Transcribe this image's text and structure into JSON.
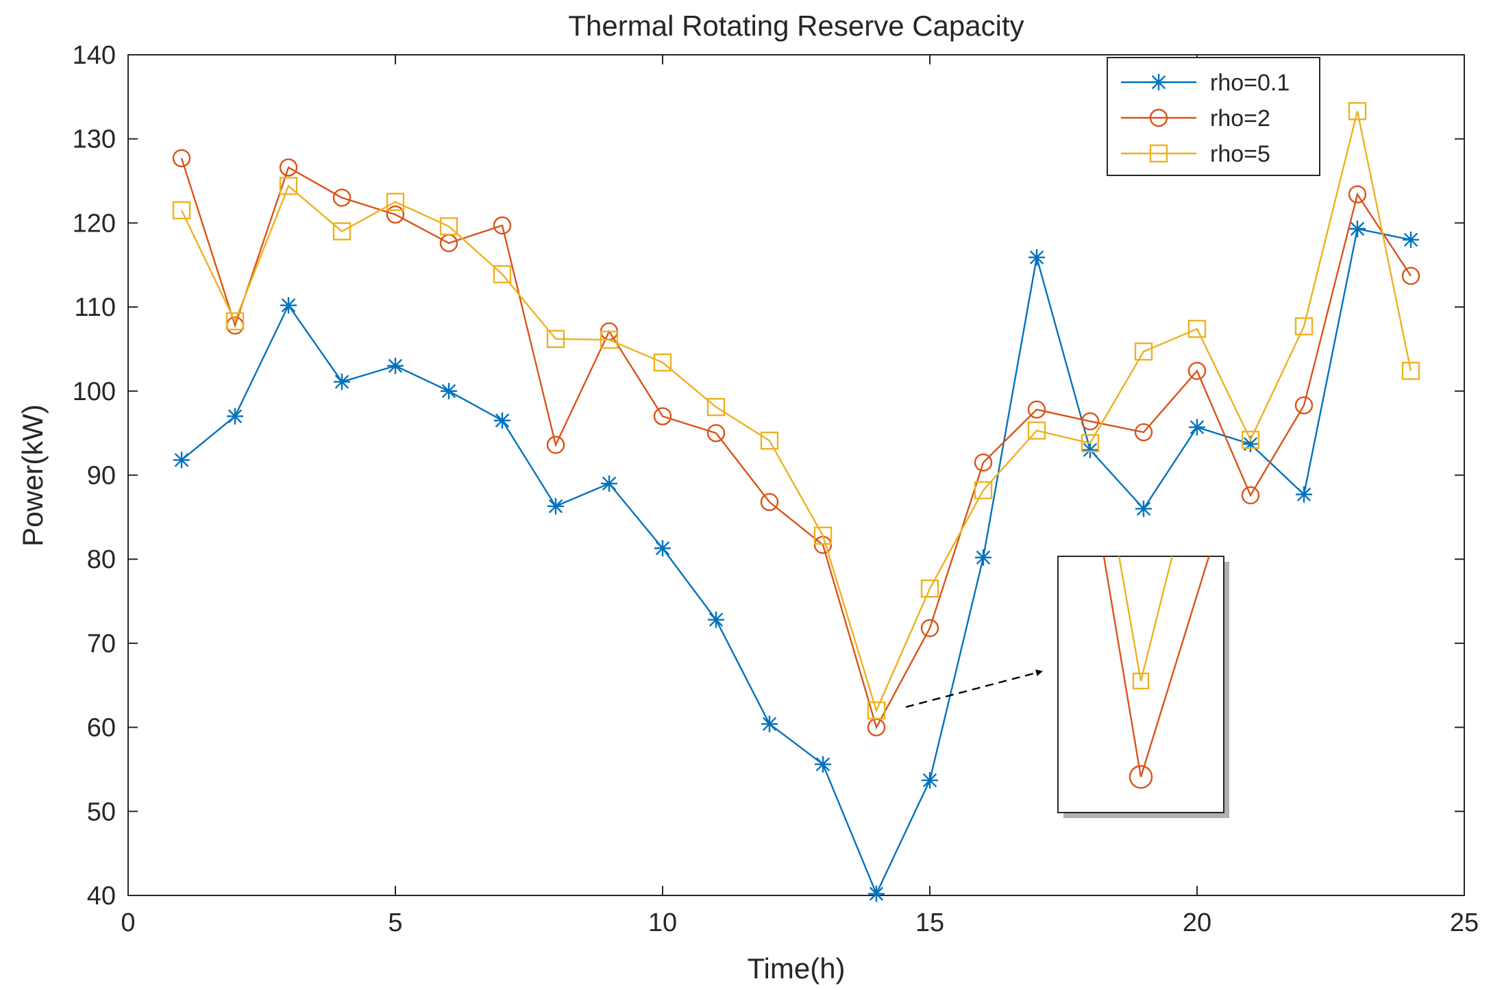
{
  "chart_data": {
    "type": "line",
    "title": "Thermal Rotating Reserve Capacity",
    "xlabel": "Time(h)",
    "ylabel": "Power(kW)",
    "xlim": [
      0,
      25
    ],
    "ylim": [
      40,
      140
    ],
    "xticks": [
      0,
      5,
      10,
      15,
      20,
      25
    ],
    "yticks": [
      40,
      50,
      60,
      70,
      80,
      90,
      100,
      110,
      120,
      130,
      140
    ],
    "grid": false,
    "legend_position": "top-right",
    "x": [
      1,
      2,
      3,
      4,
      5,
      6,
      7,
      8,
      9,
      10,
      11,
      12,
      13,
      14,
      15,
      16,
      17,
      18,
      19,
      20,
      21,
      22,
      23,
      24
    ],
    "series": [
      {
        "name": "rho=0.1",
        "color": "#0072BD",
        "marker": "asterisk",
        "values": [
          91.8,
          97,
          110.2,
          101.1,
          103,
          100,
          96.5,
          86.3,
          89,
          81.3,
          72.8,
          60.4,
          55.6,
          40.2,
          53.7,
          80.2,
          115.9,
          93,
          86,
          95.7,
          93.7,
          87.7,
          119.3,
          118
        ]
      },
      {
        "name": "rho=2",
        "color": "#D95319",
        "marker": "circle",
        "values": [
          127.7,
          107.8,
          126.6,
          123,
          121,
          117.6,
          119.7,
          93.6,
          107.1,
          97,
          95,
          86.8,
          81.7,
          60,
          71.8,
          91.5,
          97.8,
          96.4,
          95.1,
          102.4,
          87.6,
          98.3,
          123.4,
          113.7
        ]
      },
      {
        "name": "rho=5",
        "color": "#EDB120",
        "marker": "square",
        "values": [
          121.5,
          108.3,
          124.4,
          119,
          122.5,
          119.6,
          113.9,
          106.2,
          106.1,
          103.4,
          98.1,
          94.1,
          82.8,
          62,
          76.5,
          88.2,
          95.3,
          93.8,
          104.7,
          107.4,
          94.2,
          107.7,
          133.3,
          102.4
        ]
      }
    ],
    "inset": {
      "description_x": 14,
      "series_visible": [
        "rho=2",
        "rho=5"
      ]
    }
  }
}
